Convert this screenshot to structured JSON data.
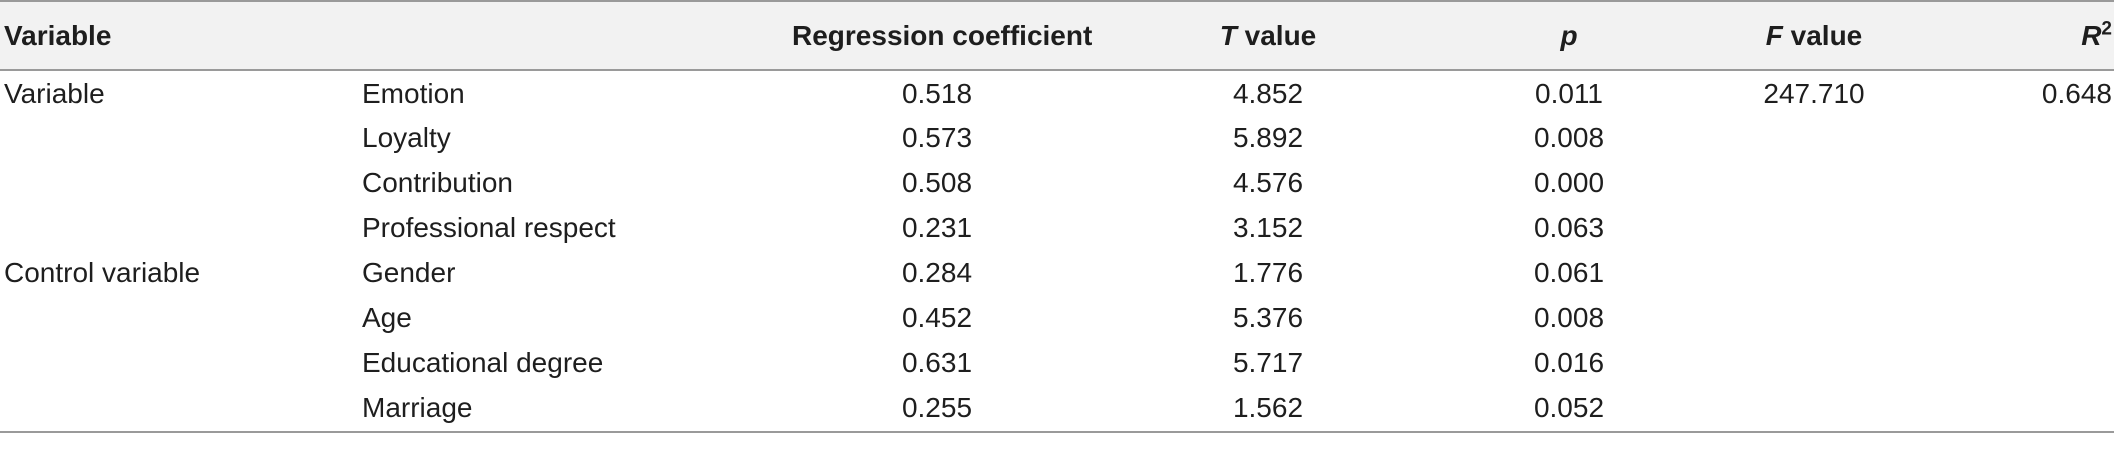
{
  "table": {
    "headers": {
      "variable": "Variable",
      "group_blank": "",
      "regression_coefficient": "Regression coefficient",
      "t_symbol": "T",
      "t_rest": " value",
      "p": "p",
      "f_symbol": "F",
      "f_rest": " value",
      "r_symbol": "R",
      "r_sup": "2"
    },
    "rows": [
      {
        "group": "Variable",
        "variable": "Emotion",
        "coefficient": "0.518",
        "t_value": "4.852",
        "p": "0.011",
        "f_value": "247.710",
        "r2": "0.648"
      },
      {
        "group": "",
        "variable": "Loyalty",
        "coefficient": "0.573",
        "t_value": "5.892",
        "p": "0.008",
        "f_value": "",
        "r2": ""
      },
      {
        "group": "",
        "variable": "Contribution",
        "coefficient": "0.508",
        "t_value": "4.576",
        "p": "0.000",
        "f_value": "",
        "r2": ""
      },
      {
        "group": "",
        "variable": "Professional respect",
        "coefficient": "0.231",
        "t_value": "3.152",
        "p": "0.063",
        "f_value": "",
        "r2": ""
      },
      {
        "group": "Control variable",
        "variable": "Gender",
        "coefficient": "0.284",
        "t_value": "1.776",
        "p": "0.061",
        "f_value": "",
        "r2": ""
      },
      {
        "group": "",
        "variable": "Age",
        "coefficient": "0.452",
        "t_value": "5.376",
        "p": "0.008",
        "f_value": "",
        "r2": ""
      },
      {
        "group": "",
        "variable": "Educational degree",
        "coefficient": "0.631",
        "t_value": "5.717",
        "p": "0.016",
        "f_value": "",
        "r2": ""
      },
      {
        "group": "",
        "variable": "Marriage",
        "coefficient": "0.255",
        "t_value": "1.562",
        "p": "0.052",
        "f_value": "",
        "r2": ""
      }
    ]
  },
  "colors": {
    "header_background": "#f2f2f2",
    "rule": "#9a9a9a",
    "text": "#1e1e1e"
  }
}
